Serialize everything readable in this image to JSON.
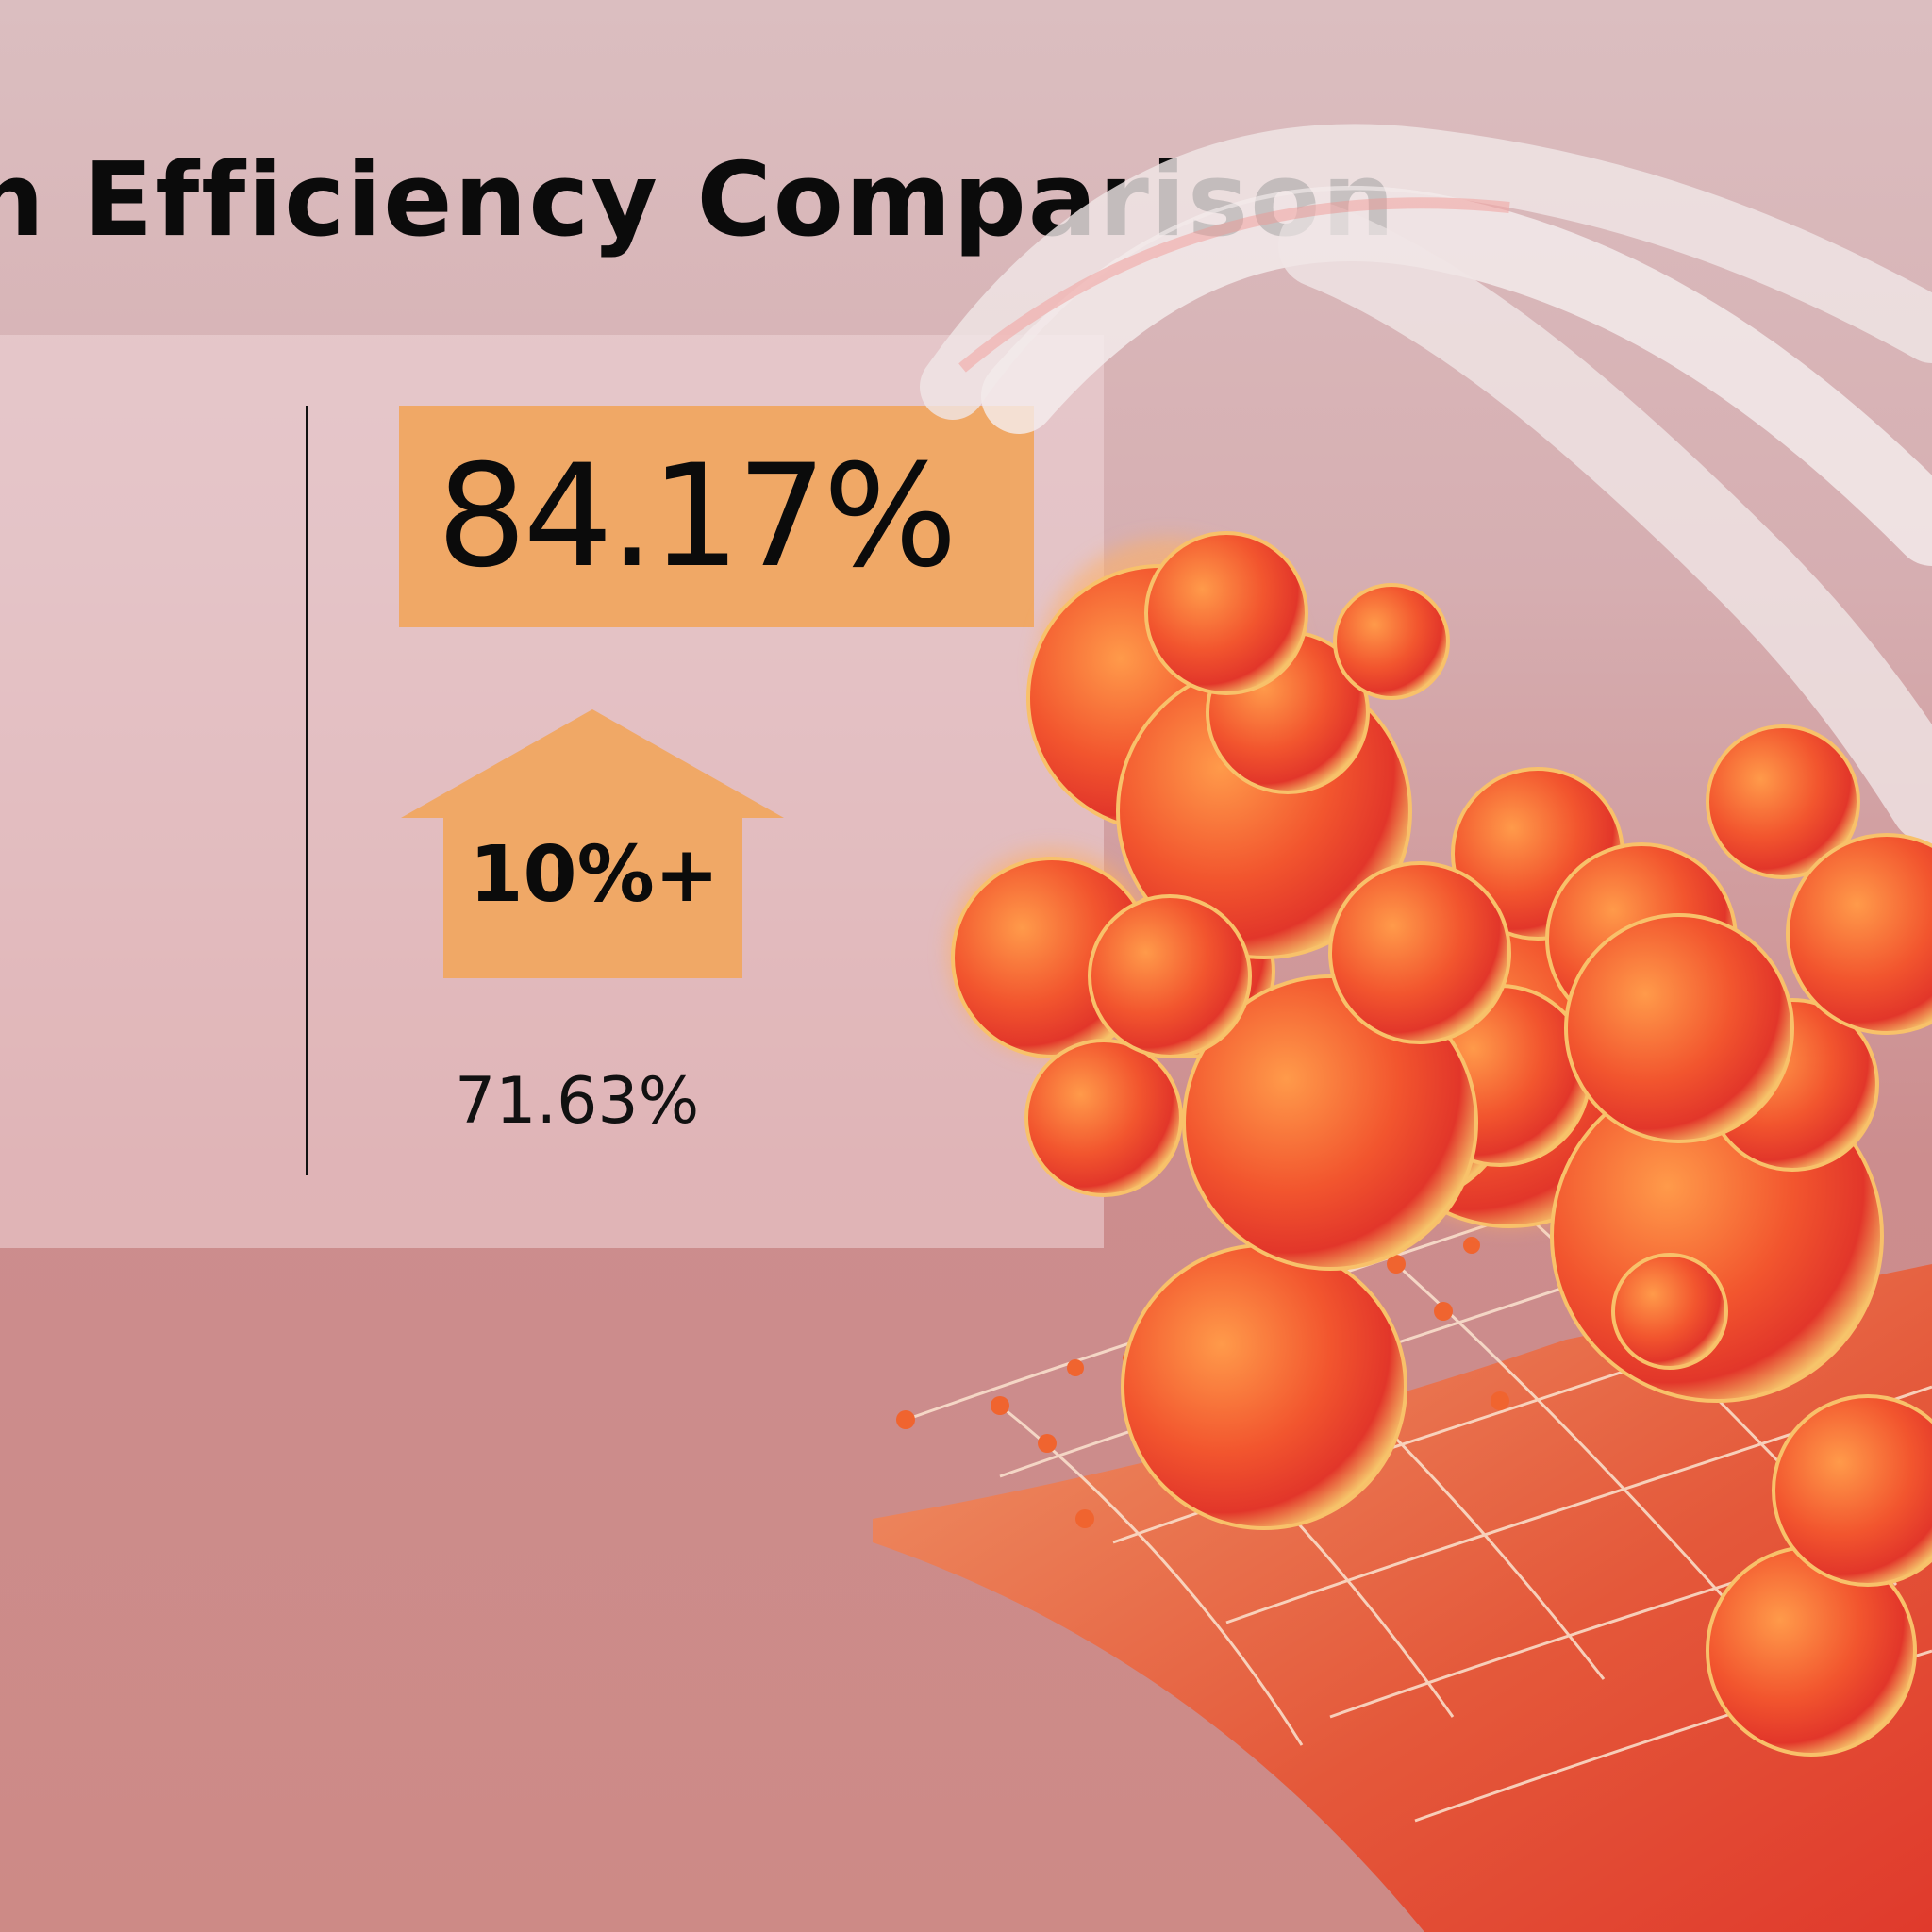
{
  "title": "n Efficiency Comparison",
  "improved_value": "84.17%",
  "increase_label": "10%+",
  "baseline_value": "71.63%",
  "colors": {
    "accent_orange": "#f0a866",
    "background_top": "#dbbec0",
    "background_bottom": "#cd8a86",
    "sphere_red": "#e8412a"
  },
  "icons": [
    "up-arrow-icon"
  ],
  "illustration": {
    "elements": [
      "fibrous-helix-strands",
      "orange-red-spheres",
      "curved-grid-sheet"
    ]
  }
}
